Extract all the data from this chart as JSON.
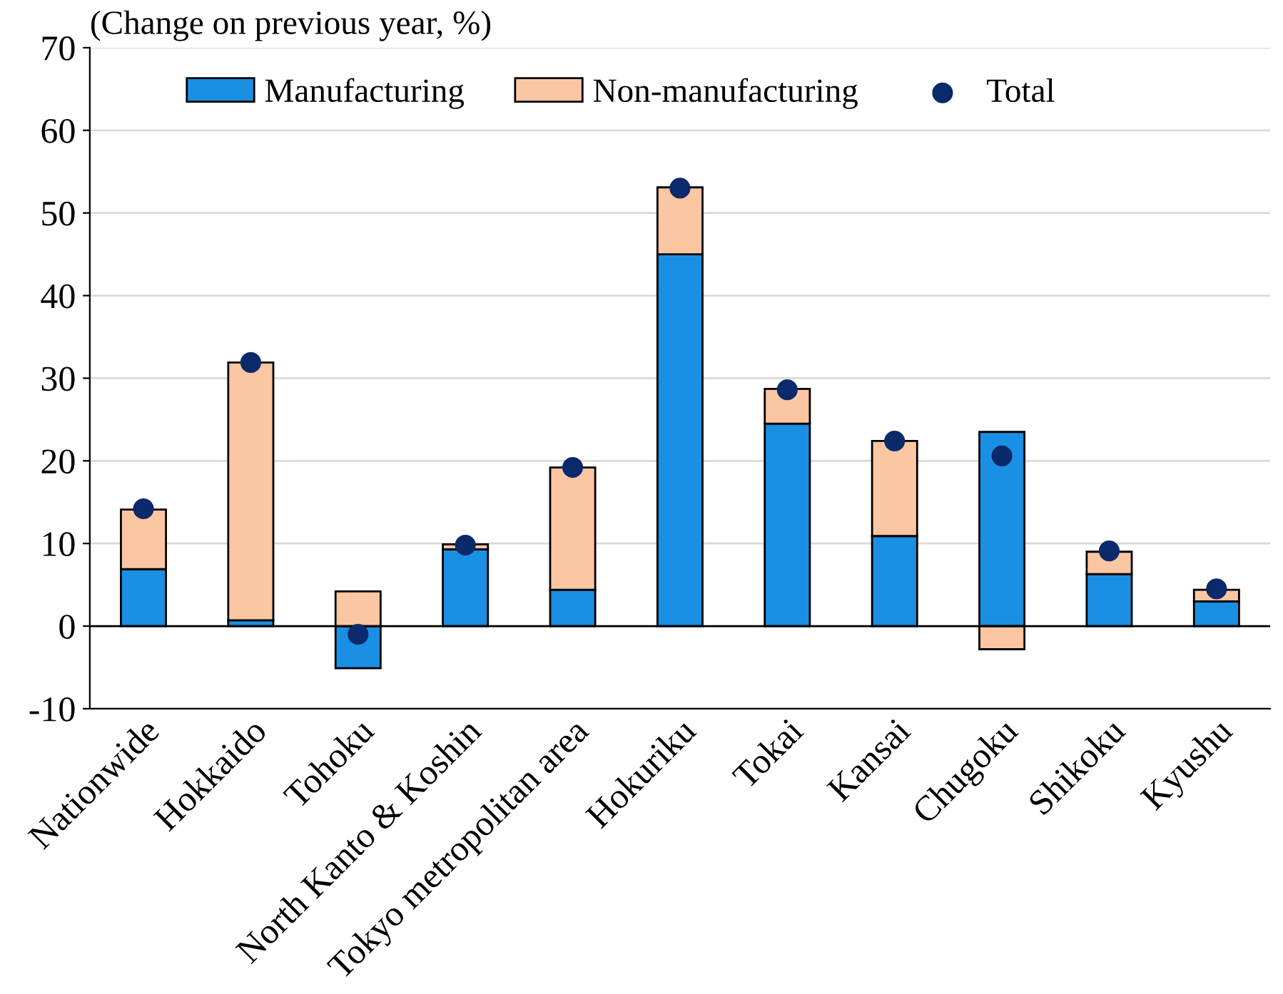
{
  "chart_data": {
    "type": "bar",
    "stacked": true,
    "ylabel": "(Change on previous year, %)",
    "categories": [
      "Nationwide",
      "Hokkaido",
      "Tohoku",
      "North Kanto & Koshin",
      "Tokyo metropolitan area",
      "Hokuriku",
      "Tokai",
      "Kansai",
      "Chugoku",
      "Shikoku",
      "Kyushu"
    ],
    "series": [
      {
        "name": "Manufacturing",
        "color": "#1a8fe3",
        "values": [
          6.9,
          0.7,
          -5.1,
          9.3,
          4.4,
          45.0,
          24.5,
          10.9,
          23.5,
          6.3,
          3.0
        ]
      },
      {
        "name": "Non-manufacturing",
        "color": "#fbc6a2",
        "values": [
          7.2,
          31.2,
          4.2,
          0.6,
          14.8,
          8.1,
          4.2,
          11.5,
          -2.8,
          2.7,
          1.4
        ]
      },
      {
        "name": "Total",
        "type": "scatter",
        "color": "#0b2a6b",
        "x": [
          "Nationwide",
          "Hokkaido",
          "Tohoku",
          "North Kanto & Koshin",
          "Tokyo metropolitan area",
          "Hokuriku",
          "Tokai",
          "Kansai",
          "Chugoku",
          "Shikoku",
          "Kyushu"
        ],
        "values": [
          14.2,
          31.9,
          -1.0,
          9.8,
          19.2,
          53.0,
          28.6,
          22.4,
          20.6,
          9.1,
          4.5
        ]
      }
    ],
    "ylim": [
      -10,
      70
    ],
    "yticks": [
      -10,
      0,
      10,
      20,
      30,
      40,
      50,
      60,
      70
    ],
    "grid": "y",
    "legend": "top",
    "marker": "circle"
  }
}
